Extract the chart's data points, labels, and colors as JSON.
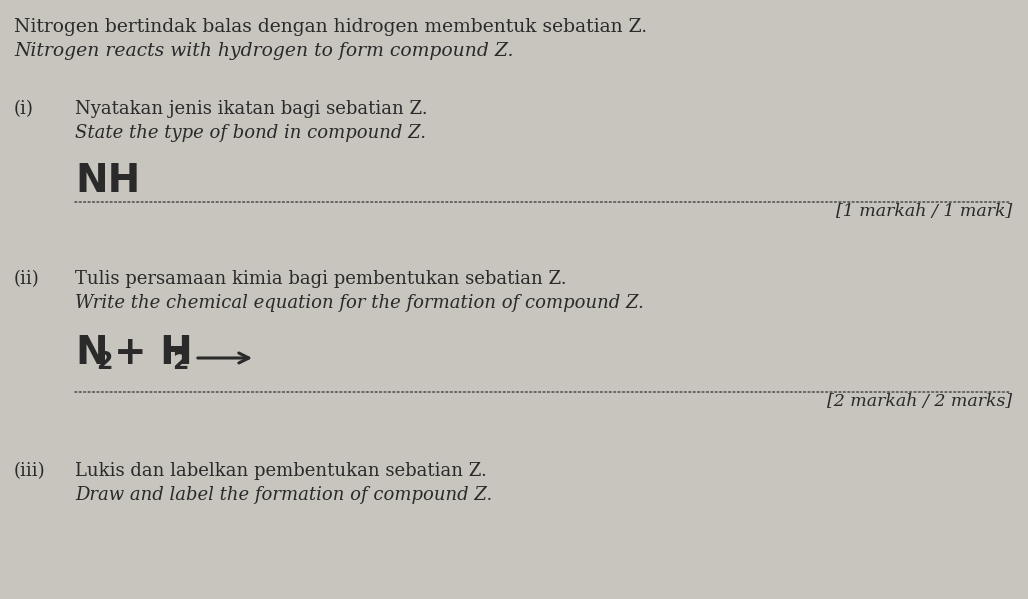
{
  "background_color": "#c8c5be",
  "text_color": "#2a2a2a",
  "dotted_line_color": "#555555",
  "title_line1": "Nitrogen bertindak balas dengan hidrogen membentuk sebatian Z.",
  "title_line2": "Nitrogen reacts with hydrogen to form compound Z.",
  "q_i_label": "(i)",
  "q_i_malay": "Nyatakan jenis ikatan bagi sebatian Z.",
  "q_i_english": "State the type of bond in compound Z.",
  "q_i_answer": "NH",
  "q_i_mark": "[1 markah / 1 mark]",
  "q_ii_label": "(ii)",
  "q_ii_malay": "Tulis persamaan kimia bagi pembentukan sebatian Z.",
  "q_ii_english": "Write the chemical equation for the formation of compound Z.",
  "q_ii_mark": "[2 markah / 2 marks]",
  "q_iii_label": "(iii)",
  "q_iii_malay": "Lukis dan labelkan pembentukan sebatian Z.",
  "q_iii_english": "Draw and label the formation of compound Z.",
  "title_fontsize": 13.5,
  "body_fontsize": 13.0,
  "answer_fontsize": 28,
  "mark_fontsize": 12.5,
  "label_fontsize": 13.0,
  "sub_fontsize": 17
}
